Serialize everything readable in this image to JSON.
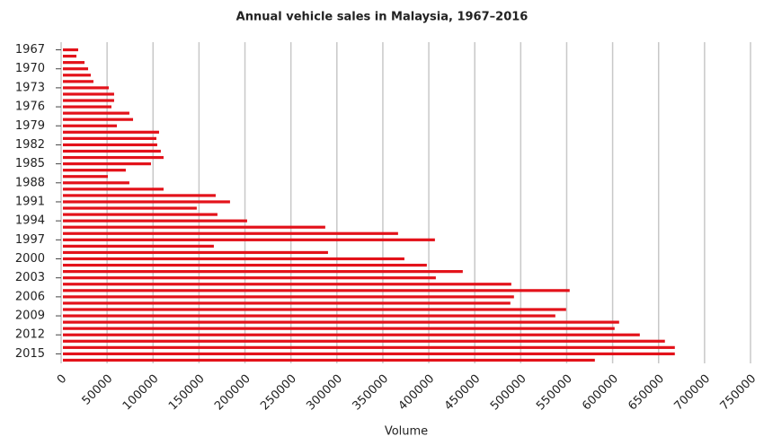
{
  "chart_data": {
    "type": "hbar",
    "title": "Annual vehicle sales in Malaysia, 1967–2016",
    "x_label": "Volume",
    "color": "#e3121a",
    "grid": true,
    "xlim": [
      0,
      750000
    ],
    "xticks": [
      0,
      50000,
      100000,
      150000,
      200000,
      250000,
      300000,
      350000,
      400000,
      450000,
      500000,
      550000,
      600000,
      650000,
      700000,
      750000
    ],
    "categories": [
      "1967",
      null,
      null,
      "1970",
      null,
      null,
      "1973",
      null,
      null,
      "1976",
      null,
      null,
      "1979",
      null,
      null,
      "1982",
      null,
      null,
      "1985",
      null,
      null,
      "1988",
      null,
      null,
      "1991",
      null,
      null,
      "1994",
      null,
      null,
      "1997",
      null,
      null,
      "2000",
      null,
      null,
      "2003",
      null,
      null,
      "2006",
      null,
      null,
      "2009",
      null,
      null,
      "2012",
      null,
      null,
      "2015",
      null
    ],
    "values": [
      16600,
      14700,
      23500,
      27400,
      30300,
      33200,
      49900,
      55700,
      55700,
      52800,
      72300,
      76300,
      58700,
      104600,
      101700,
      102600,
      106500,
      109500,
      95800,
      68400,
      48900,
      72300,
      109500,
      166200,
      181800,
      145600,
      168100,
      200400,
      285400,
      364600,
      404700,
      164200,
      288400,
      371500,
      395900,
      435000,
      405700,
      487800,
      551300,
      490700,
      486800,
      547400,
      535700,
      605100,
      600200,
      627600,
      654900,
      665700,
      665700,
      578700
    ]
  }
}
